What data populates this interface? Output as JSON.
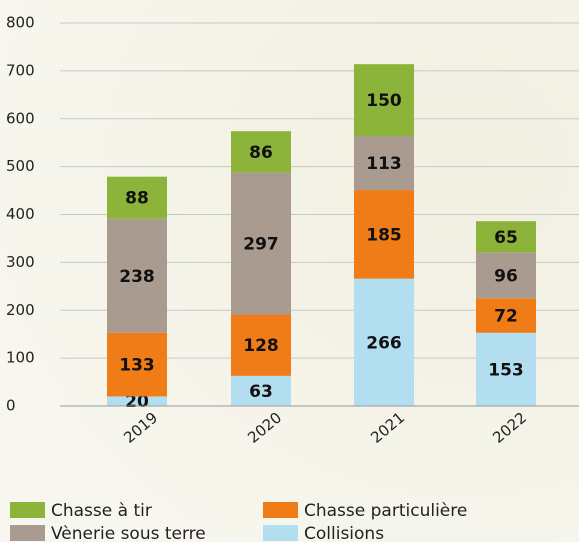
{
  "chart_data": {
    "type": "stacked-bar",
    "categories": [
      "2019",
      "2020",
      "2021",
      "2022"
    ],
    "series": [
      {
        "name": "Collisions",
        "color": "#b2def0",
        "values": [
          20,
          63,
          266,
          153
        ]
      },
      {
        "name": "Chasse particulière",
        "color": "#ef7c16",
        "values": [
          133,
          128,
          185,
          72
        ]
      },
      {
        "name": "Vènerie sous terre",
        "color": "#a99b90",
        "values": [
          238,
          297,
          113,
          96
        ]
      },
      {
        "name": "Chasse à tir",
        "color": "#8db43a",
        "values": [
          88,
          86,
          150,
          65
        ]
      }
    ],
    "ylim": [
      0,
      800
    ],
    "yticks": [
      0,
      100,
      200,
      300,
      400,
      500,
      600,
      700,
      800
    ],
    "grid": true
  }
}
